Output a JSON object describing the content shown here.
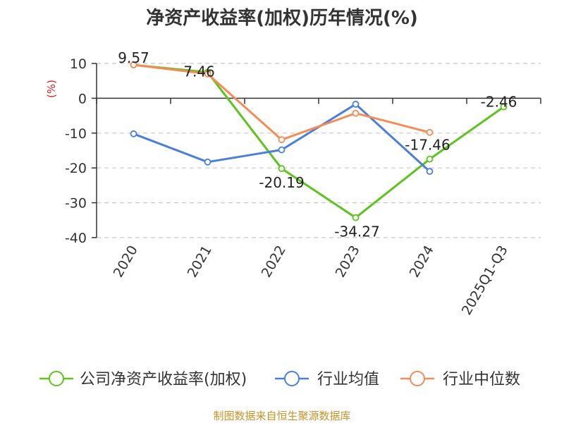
{
  "chart_data": {
    "type": "line",
    "title": "净资产收益率(加权)历年情况(%)",
    "ylabel": "(%)",
    "xlabel": "",
    "categories": [
      "2020",
      "2021",
      "2022",
      "2023",
      "2024",
      "2025Q1-Q3"
    ],
    "ylim": [
      -40,
      10
    ],
    "yticks": [
      10,
      0,
      -10,
      -20,
      -30,
      -40
    ],
    "grid": true,
    "legend_position": "bottom",
    "series": [
      {
        "name": "公司净资产收益率(加权)",
        "color": "#5cc41a",
        "values": [
          9.57,
          7.46,
          -20.19,
          -34.27,
          -17.46,
          -2.46
        ],
        "labels": [
          "9.57",
          "7.46",
          "-20.19",
          "-34.27",
          "-17.46",
          "-2.46"
        ]
      },
      {
        "name": "行业均值",
        "color": "#4a7fdb",
        "values": [
          -10.2,
          -18.3,
          -14.8,
          -1.7,
          -21.0,
          null
        ]
      },
      {
        "name": "行业中位数",
        "color": "#f58c55",
        "values": [
          9.6,
          7.0,
          -11.9,
          -4.3,
          -9.8,
          null
        ]
      }
    ]
  },
  "footer": {
    "source": "制图数据来自恒生聚源数据库"
  }
}
